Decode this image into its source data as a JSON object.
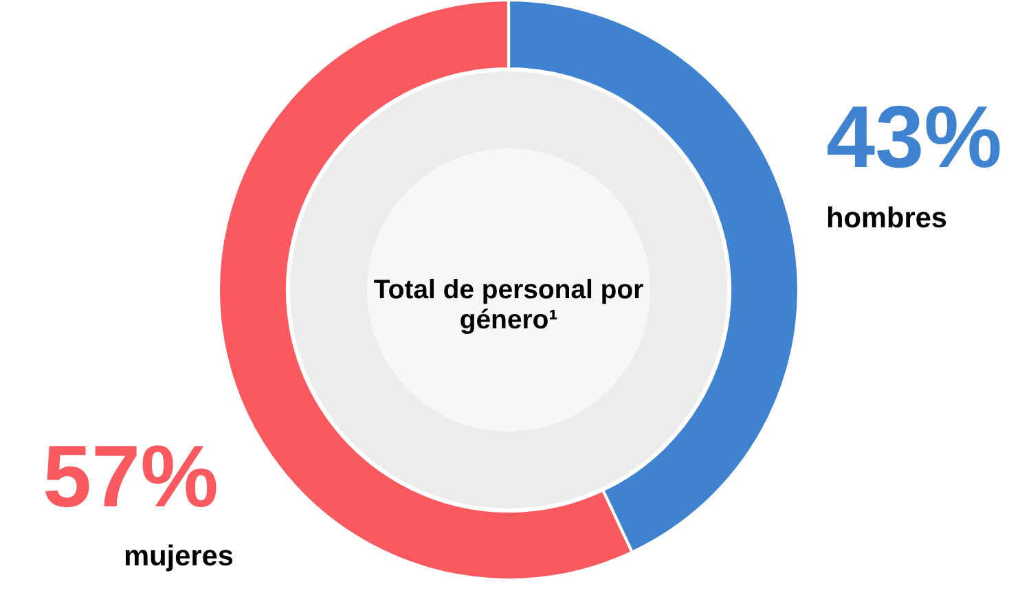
{
  "chart_data": {
    "type": "donut",
    "title": "Total de personal por género¹",
    "categories": [
      "hombres",
      "mujeres"
    ],
    "values": [
      43,
      57
    ],
    "colors": [
      "#3e82d0",
      "#fa5a5f"
    ],
    "value_labels": [
      "43%",
      "57%"
    ]
  }
}
